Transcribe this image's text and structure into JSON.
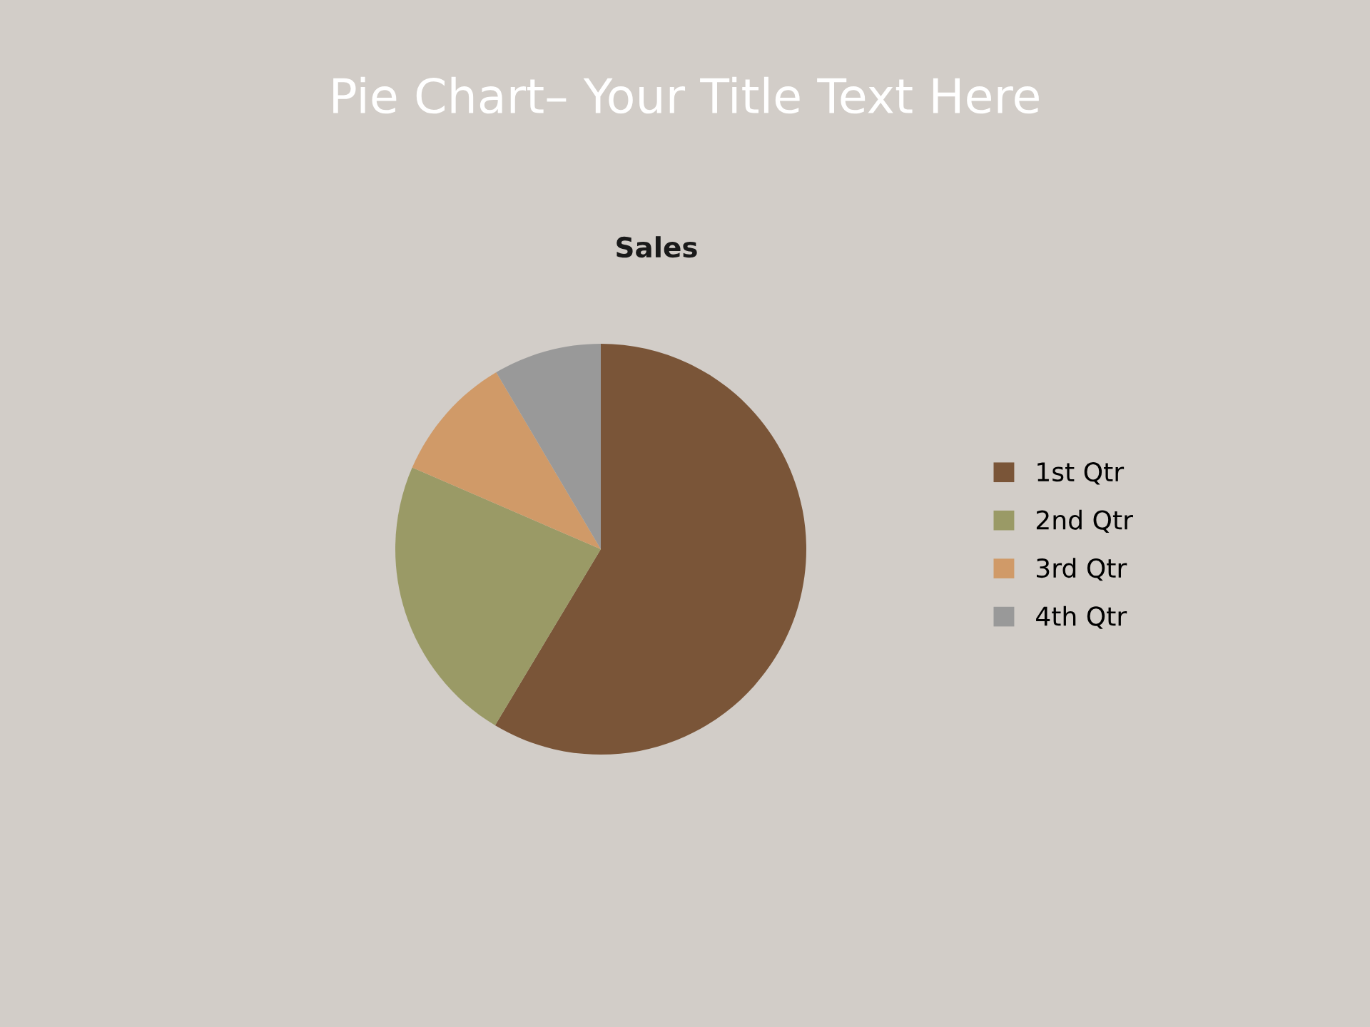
{
  "chart_data": {
    "type": "pie",
    "title": "Pie Chart– Your Title Text Here",
    "subtitle": "Sales",
    "categories": [
      "1st Qtr",
      "2nd Qtr",
      "3rd Qtr",
      "4th Qtr"
    ],
    "values": [
      58.6,
      22.9,
      10,
      8.5
    ],
    "colors": [
      "#7a5538",
      "#9a9a66",
      "#d09a68",
      "#999999"
    ],
    "legend": "right"
  }
}
